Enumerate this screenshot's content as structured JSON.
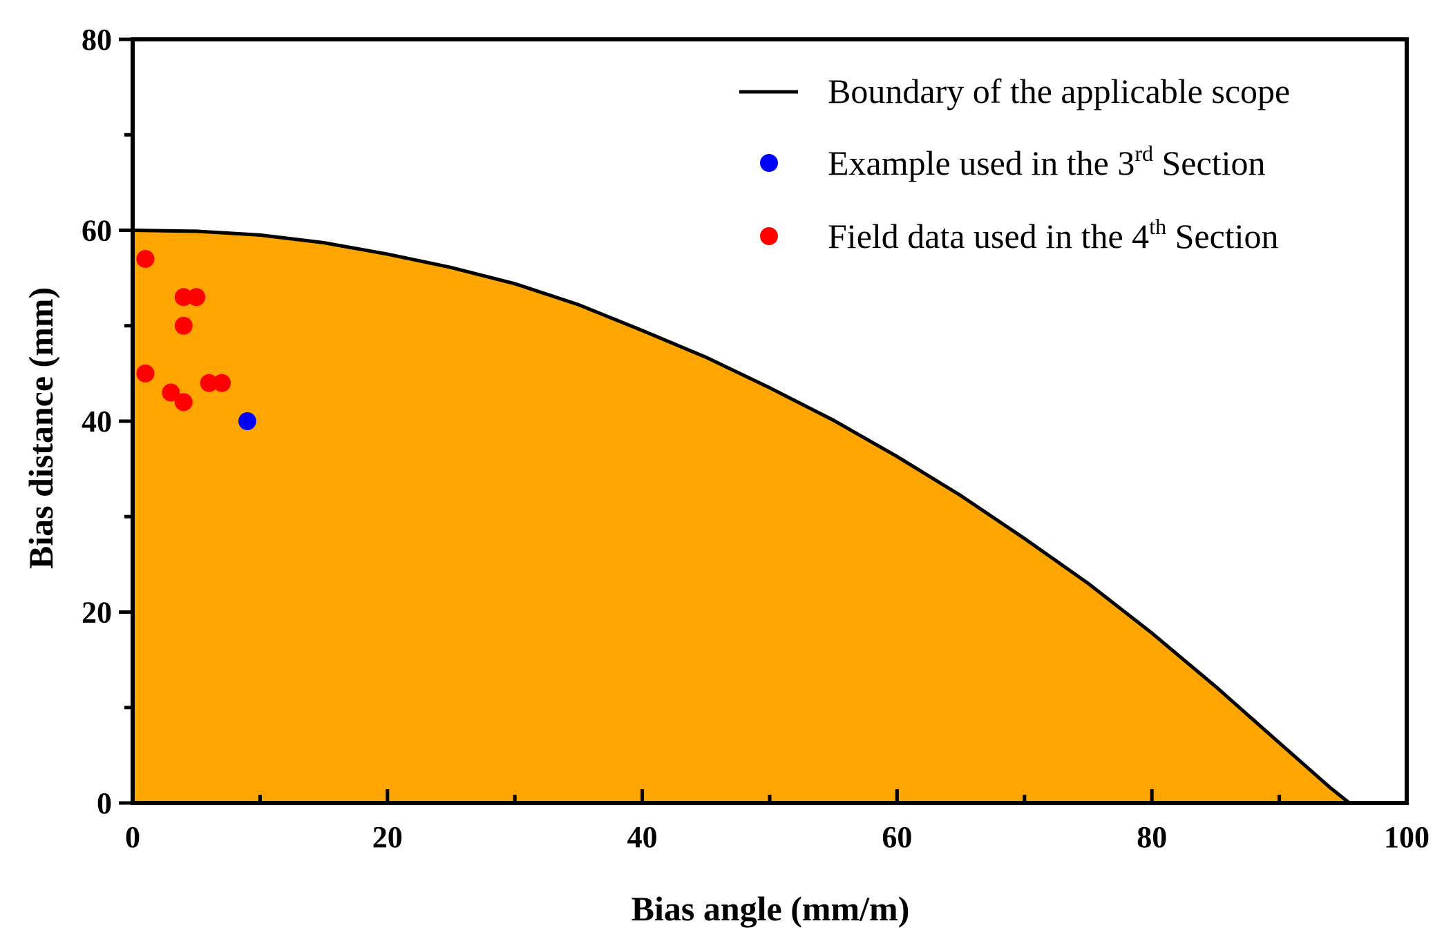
{
  "chart_data": {
    "type": "area",
    "xlabel": "Bias angle (mm/m)",
    "ylabel": "Bias distance (mm)",
    "xlim": [
      0,
      100
    ],
    "ylim": [
      0,
      80
    ],
    "x_ticks": [
      0,
      20,
      40,
      60,
      80,
      100
    ],
    "x_minor_ticks": [
      10,
      30,
      50,
      70,
      90
    ],
    "y_ticks": [
      0,
      20,
      40,
      60,
      80
    ],
    "y_minor_ticks": [
      10,
      30,
      50,
      70
    ],
    "grid": false,
    "legend_placement": "top-right",
    "fill_color": "#FFA500",
    "series": [
      {
        "name": "Boundary of the applicable scope",
        "kind": "line",
        "color": "#000000",
        "x": [
          0,
          5,
          10,
          15,
          20,
          25,
          30,
          35,
          40,
          45,
          50,
          55,
          60,
          65,
          70,
          75,
          80,
          85,
          90,
          94,
          95.5,
          100
        ],
        "y": [
          60,
          59.9,
          59.5,
          58.7,
          57.5,
          56.1,
          54.4,
          52.2,
          49.5,
          46.7,
          43.5,
          40.1,
          36.3,
          32.2,
          27.7,
          23.0,
          17.8,
          12.2,
          6.3,
          1.6,
          0,
          0
        ]
      },
      {
        "name": "Example used in the 3rd Section",
        "kind": "scatter",
        "color": "#0000FF",
        "points": [
          [
            9,
            40
          ]
        ]
      },
      {
        "name": "Field data used in the 4th Section",
        "kind": "scatter",
        "color": "#FF0000",
        "points": [
          [
            1,
            57
          ],
          [
            4,
            53
          ],
          [
            5,
            53
          ],
          [
            4,
            50
          ],
          [
            1,
            45
          ],
          [
            3,
            43
          ],
          [
            4,
            42
          ],
          [
            6,
            44
          ],
          [
            7,
            44
          ]
        ]
      }
    ],
    "legend": [
      {
        "text": "Boundary of the applicable scope",
        "sup": "",
        "after": ""
      },
      {
        "text": "Example used in the 3",
        "sup": "rd",
        "after": " Section"
      },
      {
        "text": "Field data used in the 4",
        "sup": "th",
        "after": " Section"
      }
    ]
  }
}
